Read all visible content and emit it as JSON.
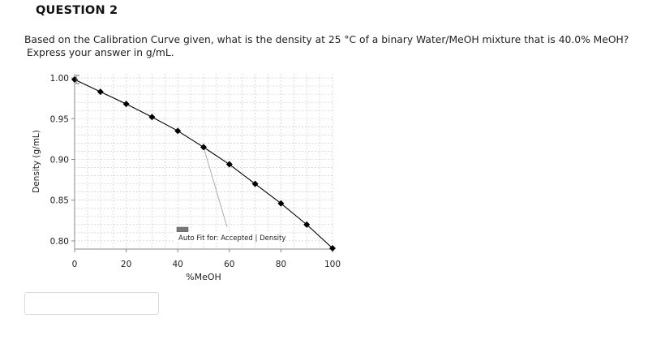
{
  "question": {
    "title": "QUESTION 2",
    "text_line1": "Based on the Calibration Curve given, what is the density  at 25 °C of a binary Water/MeOH mixture that is 40.0% MeOH?",
    "text_line2": "Express your answer in g/mL."
  },
  "answer": {
    "value": "",
    "placeholder": ""
  },
  "chart_data": {
    "type": "line",
    "xlabel": "%MeOH",
    "ylabel": "Density (g/mL)",
    "xlim": [
      0,
      100
    ],
    "ylim": [
      0.79,
      1.005
    ],
    "xticks": [
      0,
      20,
      40,
      60,
      80,
      100
    ],
    "yticks": [
      0.8,
      0.85,
      0.9,
      0.95,
      1.0
    ],
    "xtick_labels": [
      "0",
      "20",
      "40",
      "60",
      "80",
      "100"
    ],
    "ytick_labels": [
      "0.80",
      "0.85",
      "0.90",
      "0.95",
      "1.00"
    ],
    "grid": true,
    "series": [
      {
        "x": [
          0,
          10,
          20,
          30,
          40,
          50,
          60,
          70,
          80,
          90,
          100
        ],
        "values": [
          0.998,
          0.983,
          0.968,
          0.952,
          0.935,
          0.915,
          0.894,
          0.87,
          0.846,
          0.82,
          0.791
        ]
      }
    ],
    "annotation": {
      "text": "Auto Fit for: Accepted | Density",
      "points_to_x": 50,
      "points_to_y": 0.915
    },
    "colors": {
      "line": "#000000",
      "grid": "#c8c8c8",
      "axis": "#888888"
    }
  }
}
